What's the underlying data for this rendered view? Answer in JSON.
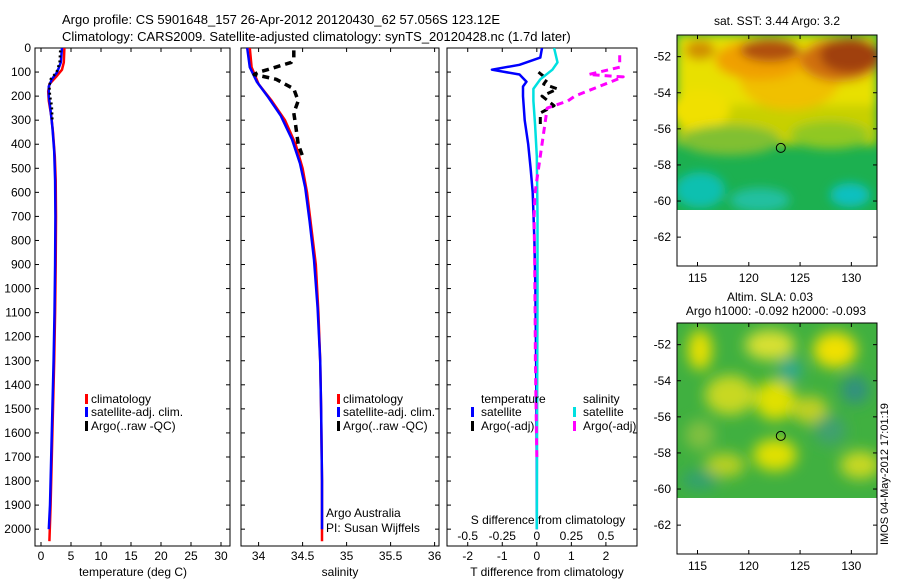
{
  "header": {
    "line1": "Argo profile: CS 5901648_157 26-Apr-2012 20120430_62 57.056S 123.12E",
    "line2": "Climatology: CARS2009. Satellite-adjusted climatology: synTS_20120428.nc (1.7d later)"
  },
  "maps": {
    "sst_title": "sat. SST: 3.44  Argo: 3.2",
    "sla_title1": "Altim. SLA: 0.03",
    "sla_title2": "Argo h1000: -0.092 h2000: -0.093",
    "xticks": [
      115,
      120,
      125,
      130
    ],
    "xticklabels": [
      "115",
      "120",
      "125",
      "130"
    ],
    "yticks": [
      -52,
      -54,
      -56,
      -58,
      -60,
      -62
    ],
    "yticklabels": [
      "-52",
      "-54",
      "-56",
      "-58",
      "-60",
      "-62"
    ],
    "xlim": [
      113,
      132.5
    ],
    "ylim": [
      -63.6,
      -50.8
    ],
    "float_position": [
      123.12,
      -57.056
    ],
    "data_extent_south": -60
  },
  "footer": {
    "stamp": "IMOS 04-May-2012 17:01:19"
  },
  "colors": {
    "climatology": "#ff0000",
    "satellite": "#0000ff",
    "argo": "#000000",
    "salinity_satellite": "#00e0e0",
    "salinity_argo": "#ff00ff"
  },
  "chart_data": [
    {
      "type": "line",
      "xlabel": "temperature (deg C)",
      "ylabel": "",
      "xlim": [
        -1,
        31.5
      ],
      "ylim": [
        2070,
        0
      ],
      "xticks": [
        0,
        5,
        10,
        15,
        20,
        25,
        30
      ],
      "xticklabels": [
        "0",
        "5",
        "10",
        "15",
        "20",
        "25",
        "30"
      ],
      "yticks": [
        0,
        100,
        200,
        300,
        400,
        500,
        600,
        700,
        800,
        900,
        1000,
        1100,
        1200,
        1300,
        1400,
        1500,
        1600,
        1700,
        1800,
        1900,
        2000
      ],
      "yticklabels": [
        "0",
        "100",
        "200",
        "300",
        "400",
        "500",
        "600",
        "700",
        "800",
        "900",
        "1000",
        "1100",
        "1200",
        "1300",
        "1400",
        "1500",
        "1600",
        "1700",
        "1800",
        "1900",
        "2000"
      ],
      "legend": [
        "climatology",
        "satellite-adj. clim.",
        "Argo(..raw -QC)"
      ],
      "legend_position": "center",
      "series": [
        {
          "name": "climatology",
          "color": "#ff0000",
          "style": "solid",
          "width": 2.5,
          "points": [
            [
              3.9,
              0
            ],
            [
              3.8,
              60
            ],
            [
              3.5,
              90
            ],
            [
              2.5,
              120
            ],
            [
              1.4,
              150
            ],
            [
              1.2,
              180
            ],
            [
              1.3,
              220
            ],
            [
              1.7,
              280
            ],
            [
              2.0,
              350
            ],
            [
              2.3,
              450
            ],
            [
              2.45,
              550
            ],
            [
              2.5,
              700
            ],
            [
              2.45,
              900
            ],
            [
              2.35,
              1100
            ],
            [
              2.2,
              1300
            ],
            [
              2.0,
              1500
            ],
            [
              1.8,
              1700
            ],
            [
              1.6,
              1900
            ],
            [
              1.4,
              2050
            ]
          ]
        },
        {
          "name": "satellite-adj. clim.",
          "color": "#0000ff",
          "style": "solid",
          "width": 2.5,
          "points": [
            [
              3.5,
              0
            ],
            [
              3.3,
              60
            ],
            [
              2.7,
              100
            ],
            [
              1.8,
              130
            ],
            [
              1.3,
              160
            ],
            [
              1.3,
              200
            ],
            [
              1.6,
              260
            ],
            [
              1.9,
              330
            ],
            [
              2.2,
              430
            ],
            [
              2.35,
              550
            ],
            [
              2.4,
              700
            ],
            [
              2.35,
              900
            ],
            [
              2.25,
              1100
            ],
            [
              2.1,
              1300
            ],
            [
              1.9,
              1500
            ],
            [
              1.7,
              1700
            ],
            [
              1.5,
              1900
            ],
            [
              1.3,
              2000
            ]
          ]
        },
        {
          "name": "Argo(..raw -QC)",
          "color": "#000000",
          "style": "dotted",
          "width": 2.5,
          "points": [
            [
              3.2,
              10
            ],
            [
              3.1,
              60
            ],
            [
              2.6,
              100
            ],
            [
              1.6,
              130
            ],
            [
              1.4,
              160
            ],
            [
              1.5,
              200
            ],
            [
              1.8,
              240
            ],
            [
              1.9,
              300
            ]
          ]
        }
      ]
    },
    {
      "type": "line",
      "xlabel": "salinity",
      "ylabel": "",
      "xlim": [
        33.8,
        36.05
      ],
      "ylim": [
        2070,
        0
      ],
      "xticks": [
        34,
        34.5,
        35,
        35.5,
        36
      ],
      "xticklabels": [
        "34",
        "34.5",
        "35",
        "35.5",
        "36"
      ],
      "legend": [
        "climatology",
        "satellite-adj. clim.",
        "Argo(..raw -QC)"
      ],
      "legend_position": "center",
      "annotation1": "Argo Australia",
      "annotation2": "PI: Susan Wijffels",
      "series": [
        {
          "name": "climatology",
          "color": "#ff0000",
          "style": "solid",
          "width": 2.5,
          "points": [
            [
              33.9,
              0
            ],
            [
              33.92,
              80
            ],
            [
              34.0,
              150
            ],
            [
              34.15,
              220
            ],
            [
              34.3,
              300
            ],
            [
              34.42,
              400
            ],
            [
              34.5,
              500
            ],
            [
              34.55,
              600
            ],
            [
              34.6,
              750
            ],
            [
              34.65,
              900
            ],
            [
              34.68,
              1100
            ],
            [
              34.7,
              1300
            ],
            [
              34.71,
              1500
            ],
            [
              34.72,
              1800
            ],
            [
              34.72,
              2050
            ]
          ]
        },
        {
          "name": "satellite-adj. clim.",
          "color": "#0000ff",
          "style": "solid",
          "width": 2.5,
          "points": [
            [
              33.87,
              0
            ],
            [
              33.9,
              80
            ],
            [
              33.98,
              140
            ],
            [
              34.1,
              200
            ],
            [
              34.25,
              280
            ],
            [
              34.38,
              380
            ],
            [
              34.47,
              480
            ],
            [
              34.53,
              580
            ],
            [
              34.58,
              720
            ],
            [
              34.63,
              880
            ],
            [
              34.67,
              1080
            ],
            [
              34.7,
              1300
            ],
            [
              34.71,
              1500
            ],
            [
              34.72,
              1800
            ],
            [
              34.72,
              2000
            ]
          ]
        },
        {
          "name": "Argo(..raw -QC)",
          "color": "#000000",
          "style": "dashed",
          "width": 3.5,
          "points": [
            [
              34.4,
              10
            ],
            [
              34.4,
              40
            ],
            [
              34.37,
              60
            ],
            [
              34.1,
              90
            ],
            [
              34.0,
              100
            ],
            [
              33.95,
              110
            ],
            [
              34.2,
              130
            ],
            [
              34.4,
              170
            ],
            [
              34.45,
              220
            ],
            [
              34.4,
              270
            ],
            [
              34.42,
              320
            ],
            [
              34.45,
              400
            ],
            [
              34.5,
              450
            ]
          ]
        }
      ]
    },
    {
      "type": "line",
      "xlabel": "T difference from climatology",
      "xlabel2": "S difference from climatology",
      "ylabel": "",
      "xlim": [
        -2.6,
        2.9
      ],
      "ylim": [
        2070,
        0
      ],
      "xticks": [
        -2,
        -1,
        0,
        1,
        2
      ],
      "xticklabels": [
        "-2",
        "-1",
        "0",
        "1",
        "2"
      ],
      "xticks_salinity": [
        -0.5,
        -0.25,
        0,
        0.25,
        0.5
      ],
      "xticklabels_salinity": [
        "-0.5",
        "-0.25",
        "0",
        "0.25",
        "0.5"
      ],
      "legend_temperature_title": "temperature",
      "legend_salinity_title": "salinity",
      "legend": [
        "satellite",
        "Argo(-adj)",
        "satellite",
        "Argo(-adj)"
      ],
      "legend_position": "center",
      "series": [
        {
          "name": "satellite",
          "color": "#0000ff",
          "style": "solid",
          "width": 2.5,
          "points": [
            [
              0.15,
              0
            ],
            [
              0.1,
              40
            ],
            [
              -0.5,
              70
            ],
            [
              -1.3,
              90
            ],
            [
              -0.5,
              110
            ],
            [
              -0.3,
              140
            ],
            [
              -0.4,
              160
            ],
            [
              -0.4,
              200
            ],
            [
              -0.35,
              300
            ],
            [
              -0.25,
              400
            ],
            [
              -0.18,
              500
            ],
            [
              -0.12,
              600
            ],
            [
              -0.07,
              800
            ],
            [
              -0.04,
              1000
            ],
            [
              -0.02,
              1300
            ],
            [
              0,
              1700
            ],
            [
              0,
              2000
            ]
          ]
        },
        {
          "name": "Argo(-adj)",
          "color": "#000000",
          "style": "dashed",
          "width": 3,
          "points": [
            [
              0.05,
              100
            ],
            [
              0.3,
              130
            ],
            [
              0.2,
              150
            ],
            [
              0.6,
              170
            ],
            [
              0.15,
              200
            ],
            [
              0.5,
              240
            ],
            [
              0.1,
              270
            ],
            [
              0.1,
              330
            ]
          ]
        },
        {
          "name": "satellite",
          "color": "#00e0e0",
          "style": "solid",
          "width": 2.5,
          "points": [
            [
              0.5,
              0
            ],
            [
              0.6,
              60
            ],
            [
              0.45,
              90
            ],
            [
              0.1,
              130
            ],
            [
              -0.1,
              170
            ],
            [
              -0.1,
              220
            ],
            [
              -0.05,
              320
            ],
            [
              0,
              450
            ],
            [
              0.02,
              700
            ],
            [
              0.02,
              1000
            ],
            [
              0.01,
              1400
            ],
            [
              0,
              2000
            ]
          ]
        },
        {
          "name": "Argo(-adj)",
          "color": "#ff00ff",
          "style": "dashed",
          "width": 3,
          "points": [
            [
              2.4,
              30
            ],
            [
              2.4,
              80
            ],
            [
              1.5,
              110
            ],
            [
              2.5,
              120
            ],
            [
              1.1,
              200
            ],
            [
              0.9,
              220
            ],
            [
              0.3,
              250
            ],
            [
              -0.05,
              600
            ],
            [
              -0.08,
              700
            ],
            [
              -0.06,
              900
            ],
            [
              -0.05,
              1100
            ],
            [
              -0.04,
              1300
            ],
            [
              -0.02,
              1500
            ],
            [
              0,
              1700
            ]
          ]
        }
      ]
    }
  ]
}
